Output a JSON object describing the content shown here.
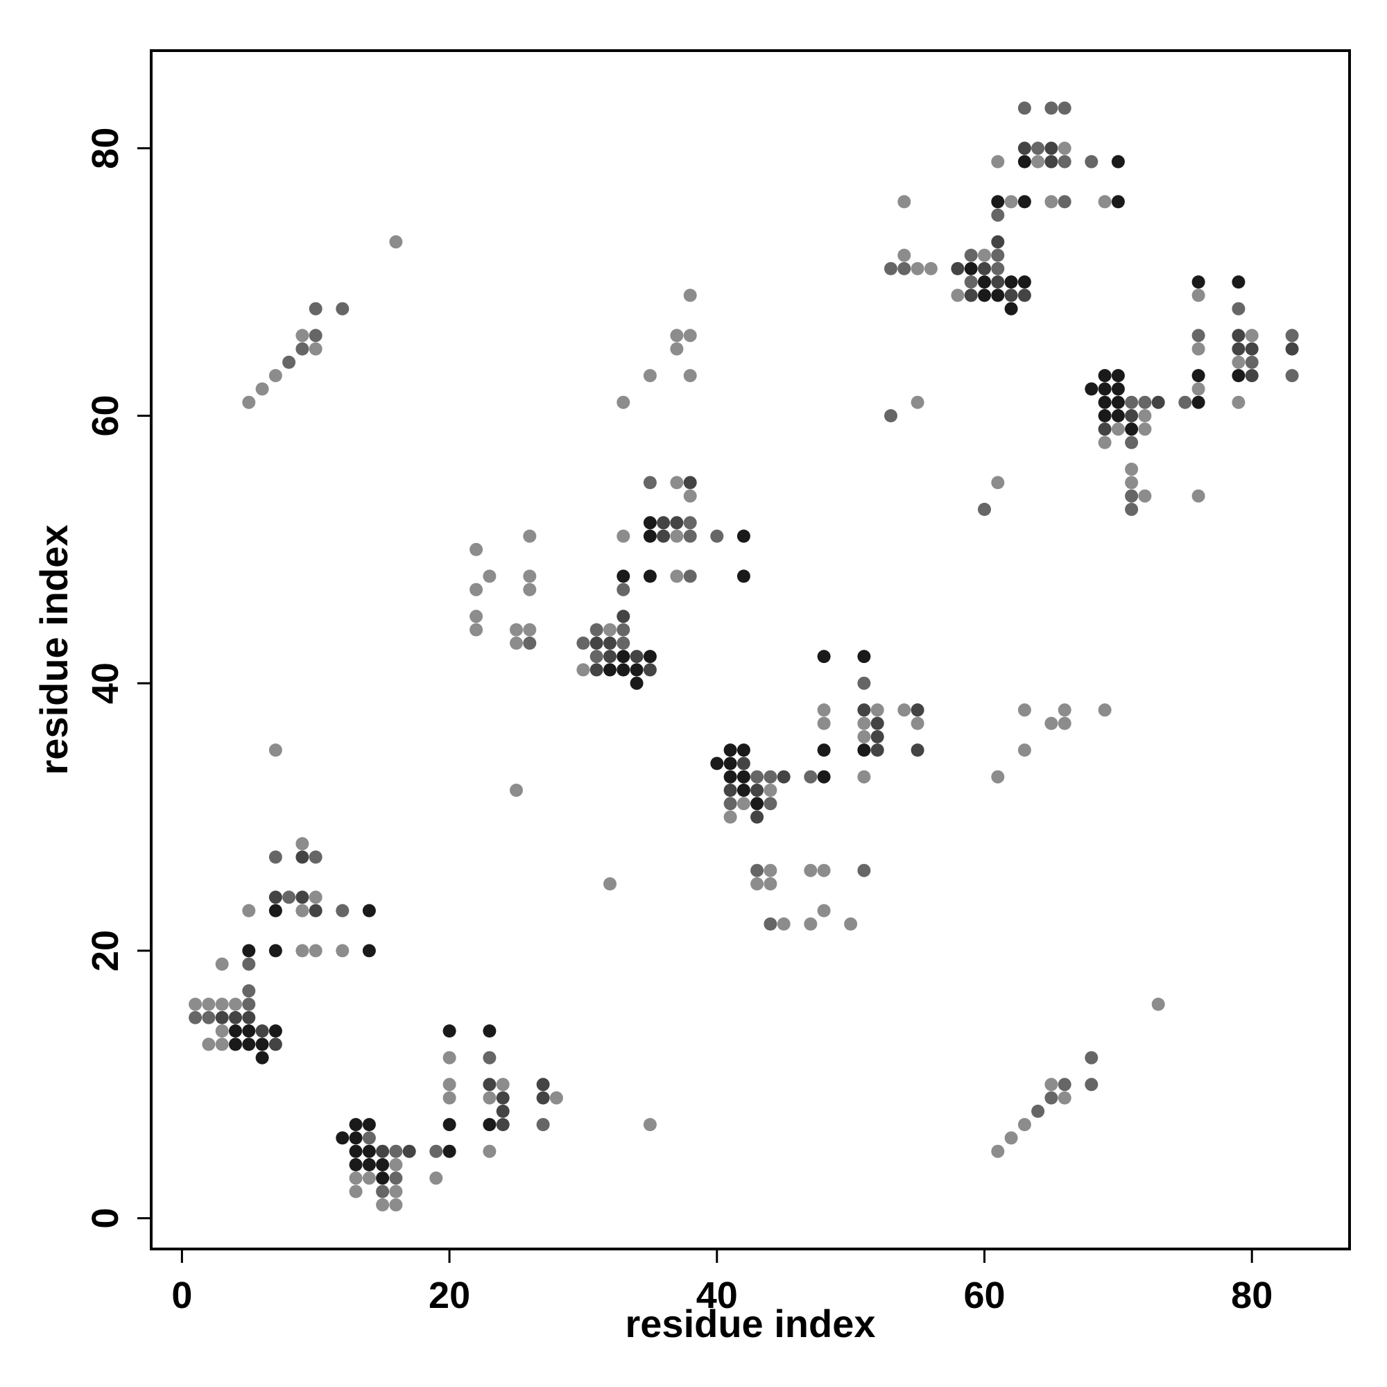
{
  "chart_data": {
    "type": "scatter",
    "xlabel": "residue index",
    "ylabel": "residue index",
    "xlim": [
      -2.3,
      87.3
    ],
    "ylim": [
      -2.3,
      87.3
    ],
    "xticks": [
      0,
      20,
      40,
      60,
      80
    ],
    "yticks": [
      0,
      20,
      40,
      60,
      80
    ],
    "grid": false,
    "legend": "none",
    "shade_colors": {
      "1": "#1a1a1a",
      "2": "#444444",
      "3": "#666666",
      "4": "#8c8c8c"
    },
    "points": [
      [
        5,
        61,
        4
      ],
      [
        6,
        62,
        4
      ],
      [
        7,
        63,
        4
      ],
      [
        8,
        64,
        3
      ],
      [
        9,
        65,
        3
      ],
      [
        10,
        65,
        4
      ],
      [
        9,
        66,
        4
      ],
      [
        10,
        66,
        3
      ],
      [
        10,
        68,
        3
      ],
      [
        12,
        68,
        3
      ],
      [
        16,
        73,
        4
      ],
      [
        7,
        35,
        4
      ],
      [
        25,
        32,
        4
      ],
      [
        32,
        25,
        4
      ],
      [
        35,
        7,
        4
      ],
      [
        73,
        16,
        4
      ],
      [
        1,
        16,
        4
      ],
      [
        2,
        16,
        4
      ],
      [
        3,
        16,
        4
      ],
      [
        4,
        16,
        4
      ],
      [
        5,
        16,
        3
      ],
      [
        1,
        15,
        3
      ],
      [
        2,
        15,
        3
      ],
      [
        3,
        15,
        2
      ],
      [
        4,
        15,
        2
      ],
      [
        5,
        15,
        2
      ],
      [
        3,
        14,
        4
      ],
      [
        4,
        14,
        1
      ],
      [
        5,
        14,
        1
      ],
      [
        6,
        14,
        2
      ],
      [
        7,
        14,
        1
      ],
      [
        2,
        13,
        4
      ],
      [
        3,
        13,
        4
      ],
      [
        4,
        13,
        1
      ],
      [
        5,
        13,
        1
      ],
      [
        6,
        13,
        1
      ],
      [
        7,
        13,
        2
      ],
      [
        6,
        12,
        1
      ],
      [
        5,
        17,
        3
      ],
      [
        5,
        19,
        3
      ],
      [
        3,
        19,
        4
      ],
      [
        5,
        20,
        1
      ],
      [
        7,
        20,
        1
      ],
      [
        9,
        20,
        4
      ],
      [
        10,
        20,
        4
      ],
      [
        12,
        20,
        4
      ],
      [
        14,
        20,
        1
      ],
      [
        5,
        23,
        4
      ],
      [
        7,
        23,
        1
      ],
      [
        9,
        23,
        4
      ],
      [
        10,
        23,
        2
      ],
      [
        12,
        23,
        3
      ],
      [
        14,
        23,
        1
      ],
      [
        7,
        24,
        2
      ],
      [
        8,
        24,
        3
      ],
      [
        9,
        24,
        2
      ],
      [
        10,
        24,
        4
      ],
      [
        7,
        27,
        3
      ],
      [
        9,
        27,
        2
      ],
      [
        10,
        27,
        3
      ],
      [
        9,
        28,
        4
      ],
      [
        12,
        6,
        1
      ],
      [
        13,
        7,
        1
      ],
      [
        14,
        7,
        1
      ],
      [
        13,
        6,
        1
      ],
      [
        14,
        6,
        3
      ],
      [
        13,
        5,
        1
      ],
      [
        14,
        5,
        1
      ],
      [
        15,
        5,
        2
      ],
      [
        16,
        5,
        3
      ],
      [
        17,
        5,
        2
      ],
      [
        13,
        4,
        1
      ],
      [
        14,
        4,
        1
      ],
      [
        15,
        4,
        1
      ],
      [
        16,
        4,
        4
      ],
      [
        13,
        3,
        4
      ],
      [
        14,
        3,
        4
      ],
      [
        15,
        3,
        1
      ],
      [
        16,
        3,
        3
      ],
      [
        13,
        2,
        4
      ],
      [
        15,
        2,
        3
      ],
      [
        16,
        2,
        4
      ],
      [
        15,
        1,
        4
      ],
      [
        16,
        1,
        4
      ],
      [
        19,
        3,
        4
      ],
      [
        19,
        5,
        3
      ],
      [
        20,
        5,
        1
      ],
      [
        20,
        7,
        1
      ],
      [
        20,
        9,
        4
      ],
      [
        20,
        10,
        4
      ],
      [
        20,
        12,
        4
      ],
      [
        20,
        14,
        1
      ],
      [
        23,
        5,
        4
      ],
      [
        23,
        7,
        1
      ],
      [
        24,
        7,
        2
      ],
      [
        23,
        9,
        4
      ],
      [
        24,
        9,
        2
      ],
      [
        23,
        10,
        2
      ],
      [
        24,
        10,
        4
      ],
      [
        24,
        8,
        2
      ],
      [
        23,
        12,
        3
      ],
      [
        23,
        14,
        1
      ],
      [
        27,
        7,
        3
      ],
      [
        27,
        9,
        2
      ],
      [
        28,
        9,
        4
      ],
      [
        27,
        10,
        2
      ],
      [
        22,
        44,
        4
      ],
      [
        22,
        45,
        4
      ],
      [
        22,
        47,
        4
      ],
      [
        23,
        48,
        4
      ],
      [
        22,
        50,
        4
      ],
      [
        25,
        43,
        4
      ],
      [
        26,
        43,
        3
      ],
      [
        25,
        44,
        4
      ],
      [
        26,
        44,
        4
      ],
      [
        26,
        47,
        4
      ],
      [
        26,
        48,
        4
      ],
      [
        26,
        51,
        4
      ],
      [
        30,
        41,
        4
      ],
      [
        31,
        41,
        2
      ],
      [
        32,
        41,
        1
      ],
      [
        33,
        41,
        1
      ],
      [
        34,
        41,
        1
      ],
      [
        35,
        41,
        2
      ],
      [
        30,
        43,
        3
      ],
      [
        31,
        43,
        2
      ],
      [
        32,
        43,
        2
      ],
      [
        33,
        43,
        3
      ],
      [
        31,
        42,
        3
      ],
      [
        32,
        42,
        2
      ],
      [
        33,
        42,
        1
      ],
      [
        34,
        42,
        2
      ],
      [
        35,
        42,
        1
      ],
      [
        31,
        44,
        3
      ],
      [
        32,
        44,
        4
      ],
      [
        33,
        44,
        3
      ],
      [
        33,
        45,
        2
      ],
      [
        34,
        40,
        1
      ],
      [
        33,
        47,
        3
      ],
      [
        33,
        48,
        1
      ],
      [
        33,
        51,
        4
      ],
      [
        35,
        48,
        1
      ],
      [
        33,
        61,
        4
      ],
      [
        35,
        63,
        4
      ],
      [
        35,
        51,
        1
      ],
      [
        36,
        51,
        2
      ],
      [
        37,
        51,
        4
      ],
      [
        38,
        51,
        3
      ],
      [
        35,
        52,
        1
      ],
      [
        36,
        52,
        2
      ],
      [
        37,
        52,
        2
      ],
      [
        38,
        52,
        3
      ],
      [
        35,
        55,
        3
      ],
      [
        37,
        55,
        4
      ],
      [
        38,
        55,
        2
      ],
      [
        38,
        54,
        4
      ],
      [
        37,
        48,
        4
      ],
      [
        38,
        48,
        3
      ],
      [
        40,
        51,
        3
      ],
      [
        42,
        51,
        1
      ],
      [
        42,
        48,
        1
      ],
      [
        37,
        65,
        4
      ],
      [
        37,
        66,
        4
      ],
      [
        38,
        66,
        4
      ],
      [
        38,
        63,
        4
      ],
      [
        38,
        69,
        4
      ],
      [
        40,
        34,
        1
      ],
      [
        41,
        34,
        1
      ],
      [
        41,
        35,
        1
      ],
      [
        42,
        35,
        1
      ],
      [
        42,
        34,
        2
      ],
      [
        41,
        33,
        1
      ],
      [
        42,
        33,
        1
      ],
      [
        43,
        33,
        3
      ],
      [
        44,
        33,
        3
      ],
      [
        45,
        33,
        2
      ],
      [
        41,
        32,
        2
      ],
      [
        42,
        32,
        1
      ],
      [
        43,
        32,
        2
      ],
      [
        44,
        32,
        4
      ],
      [
        41,
        31,
        3
      ],
      [
        42,
        31,
        4
      ],
      [
        43,
        31,
        1
      ],
      [
        44,
        31,
        3
      ],
      [
        41,
        30,
        4
      ],
      [
        43,
        30,
        2
      ],
      [
        43,
        26,
        3
      ],
      [
        44,
        26,
        4
      ],
      [
        43,
        25,
        4
      ],
      [
        44,
        25,
        4
      ],
      [
        44,
        22,
        3
      ],
      [
        45,
        22,
        4
      ],
      [
        47,
        33,
        3
      ],
      [
        48,
        33,
        1
      ],
      [
        48,
        35,
        1
      ],
      [
        48,
        37,
        4
      ],
      [
        48,
        38,
        4
      ],
      [
        48,
        42,
        1
      ],
      [
        47,
        26,
        4
      ],
      [
        48,
        26,
        4
      ],
      [
        48,
        23,
        4
      ],
      [
        47,
        22,
        4
      ],
      [
        50,
        22,
        4
      ],
      [
        51,
        33,
        4
      ],
      [
        51,
        35,
        1
      ],
      [
        52,
        35,
        2
      ],
      [
        51,
        36,
        4
      ],
      [
        52,
        36,
        2
      ],
      [
        51,
        37,
        4
      ],
      [
        52,
        37,
        2
      ],
      [
        51,
        38,
        2
      ],
      [
        52,
        38,
        4
      ],
      [
        51,
        40,
        3
      ],
      [
        51,
        42,
        1
      ],
      [
        51,
        26,
        3
      ],
      [
        54,
        38,
        4
      ],
      [
        55,
        38,
        2
      ],
      [
        55,
        37,
        4
      ],
      [
        55,
        35,
        2
      ],
      [
        53,
        60,
        3
      ],
      [
        55,
        61,
        4
      ],
      [
        53,
        71,
        3
      ],
      [
        54,
        71,
        3
      ],
      [
        55,
        71,
        4
      ],
      [
        56,
        71,
        4
      ],
      [
        54,
        72,
        4
      ],
      [
        54,
        76,
        4
      ],
      [
        58,
        69,
        4
      ],
      [
        59,
        69,
        2
      ],
      [
        60,
        69,
        1
      ],
      [
        61,
        69,
        1
      ],
      [
        62,
        69,
        2
      ],
      [
        63,
        69,
        2
      ],
      [
        62,
        68,
        1
      ],
      [
        59,
        70,
        3
      ],
      [
        60,
        70,
        1
      ],
      [
        61,
        70,
        2
      ],
      [
        62,
        70,
        1
      ],
      [
        63,
        70,
        1
      ],
      [
        58,
        71,
        2
      ],
      [
        59,
        71,
        1
      ],
      [
        60,
        71,
        2
      ],
      [
        61,
        71,
        3
      ],
      [
        59,
        72,
        3
      ],
      [
        60,
        72,
        4
      ],
      [
        61,
        72,
        3
      ],
      [
        61,
        73,
        2
      ],
      [
        61,
        75,
        3
      ],
      [
        61,
        76,
        1
      ],
      [
        62,
        76,
        4
      ],
      [
        63,
        76,
        1
      ],
      [
        61,
        79,
        4
      ],
      [
        63,
        79,
        1
      ],
      [
        64,
        79,
        4
      ],
      [
        65,
        79,
        2
      ],
      [
        66,
        79,
        3
      ],
      [
        63,
        80,
        2
      ],
      [
        64,
        80,
        3
      ],
      [
        65,
        80,
        2
      ],
      [
        66,
        80,
        4
      ],
      [
        63,
        83,
        3
      ],
      [
        65,
        83,
        3
      ],
      [
        66,
        83,
        3
      ],
      [
        65,
        76,
        4
      ],
      [
        66,
        76,
        3
      ],
      [
        68,
        79,
        3
      ],
      [
        70,
        79,
        1
      ],
      [
        69,
        76,
        4
      ],
      [
        70,
        76,
        1
      ],
      [
        60,
        53,
        3
      ],
      [
        61,
        55,
        4
      ],
      [
        61,
        33,
        4
      ],
      [
        63,
        35,
        4
      ],
      [
        63,
        38,
        4
      ],
      [
        65,
        37,
        4
      ],
      [
        66,
        37,
        4
      ],
      [
        66,
        38,
        4
      ],
      [
        69,
        38,
        4
      ],
      [
        61,
        5,
        4
      ],
      [
        62,
        6,
        4
      ],
      [
        63,
        7,
        4
      ],
      [
        64,
        8,
        3
      ],
      [
        65,
        9,
        3
      ],
      [
        66,
        9,
        4
      ],
      [
        65,
        10,
        4
      ],
      [
        66,
        10,
        3
      ],
      [
        68,
        10,
        3
      ],
      [
        68,
        12,
        3
      ],
      [
        68,
        62,
        1
      ],
      [
        69,
        62,
        1
      ],
      [
        70,
        62,
        1
      ],
      [
        69,
        63,
        1
      ],
      [
        70,
        63,
        1
      ],
      [
        69,
        61,
        1
      ],
      [
        70,
        61,
        1
      ],
      [
        71,
        61,
        3
      ],
      [
        72,
        61,
        3
      ],
      [
        73,
        61,
        2
      ],
      [
        69,
        60,
        1
      ],
      [
        70,
        60,
        1
      ],
      [
        71,
        60,
        2
      ],
      [
        72,
        60,
        4
      ],
      [
        69,
        59,
        2
      ],
      [
        70,
        59,
        4
      ],
      [
        71,
        59,
        1
      ],
      [
        72,
        59,
        4
      ],
      [
        69,
        58,
        4
      ],
      [
        71,
        58,
        3
      ],
      [
        71,
        56,
        4
      ],
      [
        71,
        55,
        4
      ],
      [
        71,
        54,
        3
      ],
      [
        72,
        54,
        4
      ],
      [
        71,
        53,
        3
      ],
      [
        75,
        61,
        3
      ],
      [
        76,
        61,
        1
      ],
      [
        76,
        62,
        4
      ],
      [
        76,
        63,
        1
      ],
      [
        76,
        65,
        4
      ],
      [
        76,
        66,
        3
      ],
      [
        76,
        69,
        4
      ],
      [
        76,
        70,
        1
      ],
      [
        76,
        54,
        4
      ],
      [
        79,
        61,
        4
      ],
      [
        79,
        63,
        1
      ],
      [
        80,
        63,
        2
      ],
      [
        79,
        64,
        4
      ],
      [
        80,
        64,
        3
      ],
      [
        79,
        65,
        2
      ],
      [
        80,
        65,
        2
      ],
      [
        79,
        66,
        2
      ],
      [
        80,
        66,
        4
      ],
      [
        79,
        68,
        3
      ],
      [
        79,
        70,
        1
      ],
      [
        83,
        63,
        3
      ],
      [
        83,
        65,
        2
      ],
      [
        83,
        66,
        3
      ]
    ]
  }
}
